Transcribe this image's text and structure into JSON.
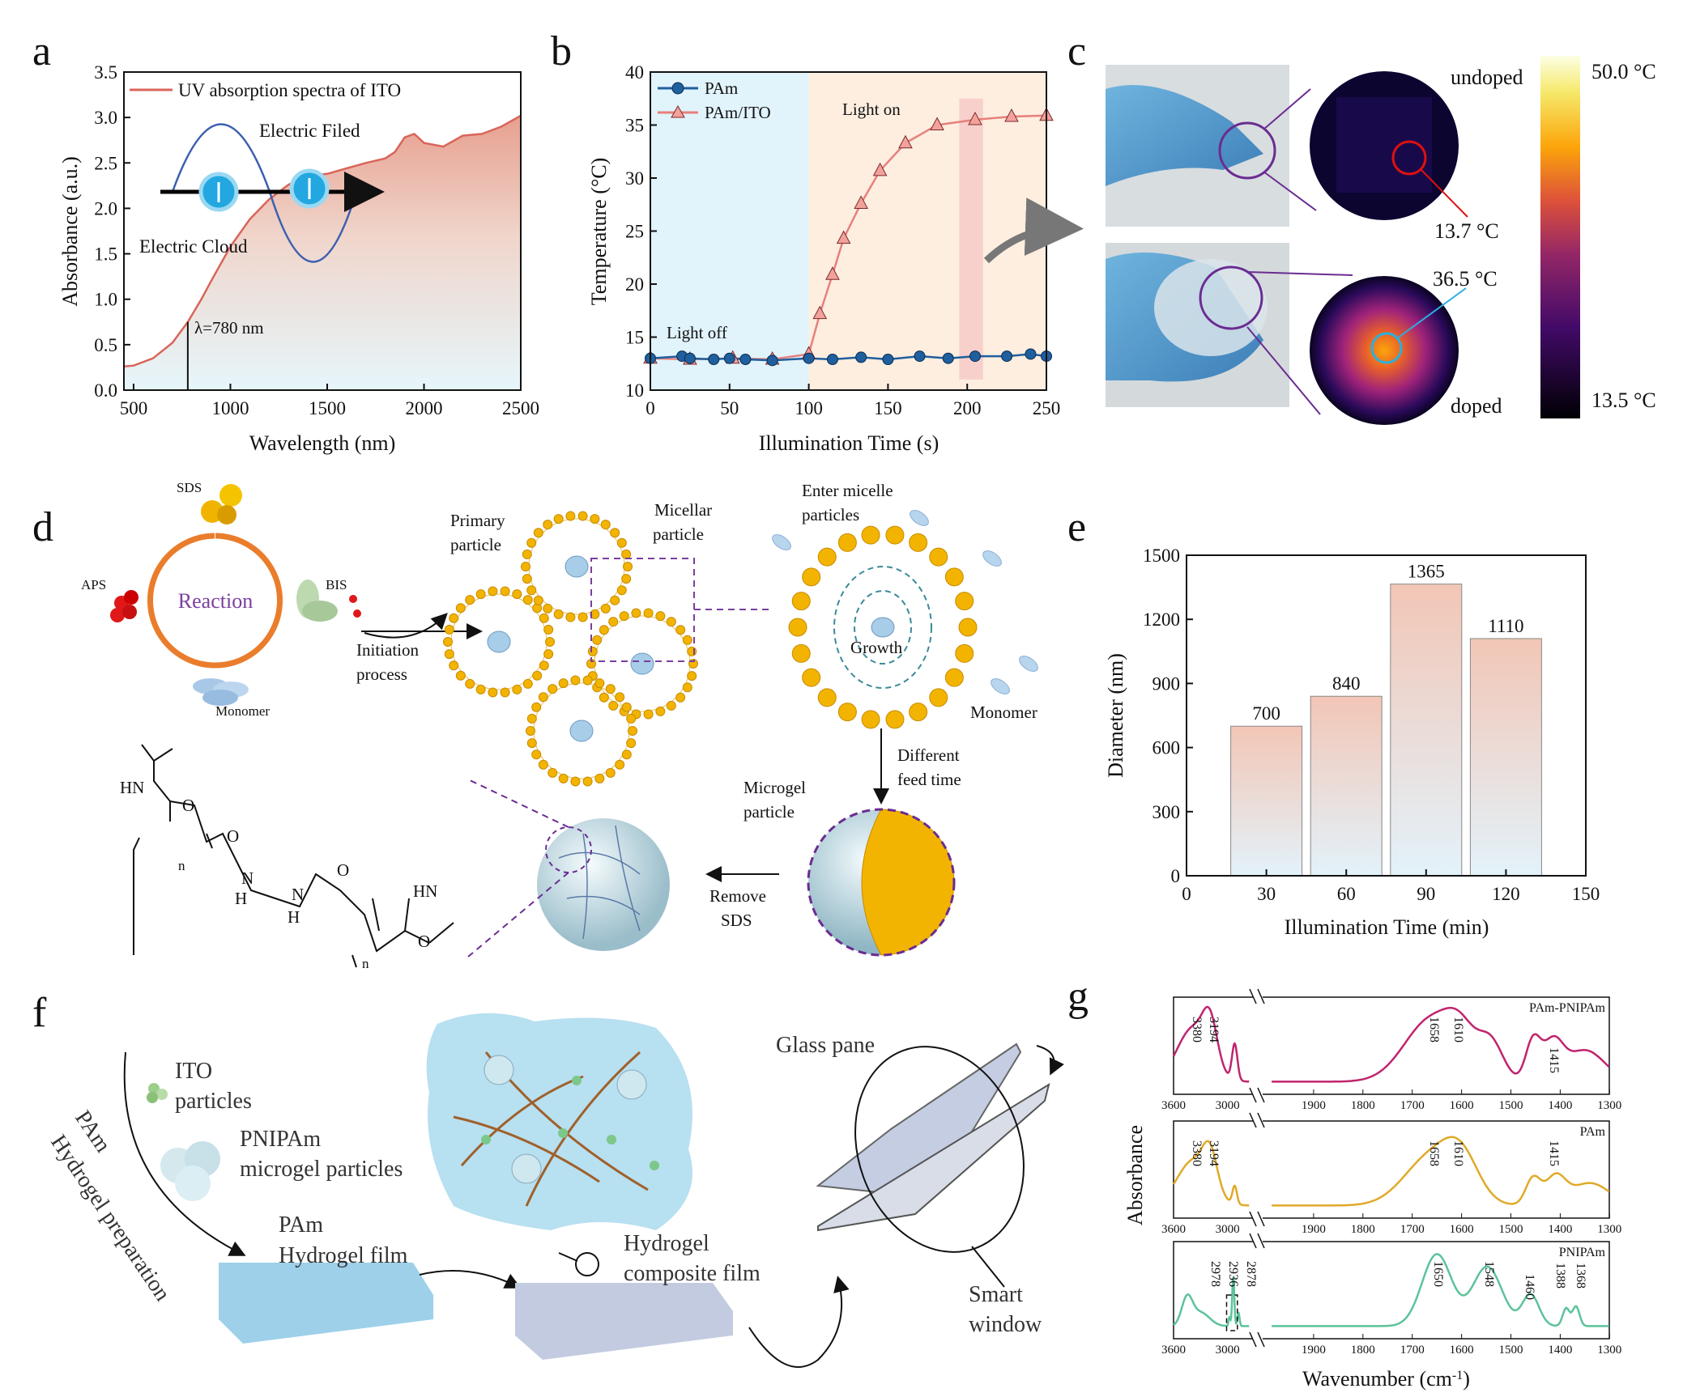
{
  "panels": {
    "a": "a",
    "b": "b",
    "c": "c",
    "d": "d",
    "e": "e",
    "f": "f",
    "g": "g"
  },
  "colors": {
    "ito_line": "#d9655a",
    "pam_line": "#1f5f9e",
    "pam_ito_line": "#e8807c",
    "bar_top": "#f2c6b6",
    "bar_bottom": "#e3f2fa",
    "pam_pnipam": "#c0246e",
    "pam": "#e0aa28",
    "pnipam": "#5cc39a",
    "reaction": "#ea7d2c",
    "reaction_text": "#7b3fa0"
  },
  "chart_data": [
    {
      "type": "line",
      "panel": "a",
      "xlabel": "Wavelength (nm)",
      "ylabel": "Absorbance (a.u.)",
      "xlim": [
        450,
        2500
      ],
      "ylim": [
        0,
        3.5
      ],
      "xticks": [
        "500",
        "1000",
        "1500",
        "2000",
        "2500"
      ],
      "yticks": [
        "0.0",
        "0.5",
        "1.0",
        "1.5",
        "2.0",
        "2.5",
        "3.0",
        "3.5"
      ],
      "legend": "UV absorption spectra of ITO",
      "legend_position": "top-left",
      "annotations": {
        "wavelength": "λ=780 nm",
        "electric_field": "Electric Filed",
        "electric_cloud": "Electric Cloud"
      },
      "marker_x": 780,
      "x": [
        450,
        500,
        600,
        700,
        780,
        850,
        900,
        1000,
        1100,
        1200,
        1300,
        1400,
        1500,
        1600,
        1700,
        1800,
        1850,
        1900,
        1950,
        2000,
        2100,
        2200,
        2300,
        2400,
        2500
      ],
      "y": [
        0.26,
        0.27,
        0.35,
        0.52,
        0.75,
        1.0,
        1.2,
        1.58,
        1.88,
        2.1,
        2.26,
        2.36,
        2.38,
        2.44,
        2.5,
        2.55,
        2.62,
        2.78,
        2.82,
        2.72,
        2.68,
        2.8,
        2.82,
        2.9,
        3.02
      ]
    },
    {
      "type": "line",
      "panel": "b",
      "xlabel": "Illumination Time (s)",
      "ylabel": "Temperature (°C)",
      "xlim": [
        0,
        250
      ],
      "ylim": [
        10,
        40
      ],
      "xticks": [
        "0",
        "50",
        "100",
        "150",
        "200",
        "250"
      ],
      "yticks": [
        "10",
        "15",
        "20",
        "25",
        "30",
        "35",
        "40"
      ],
      "regions": {
        "light_off": "Light off",
        "light_on": "Light on",
        "switch_x": 100,
        "highlight": [
          195,
          210
        ]
      },
      "legend_position": "top-left",
      "series": [
        {
          "name": "PAm",
          "x": [
            0,
            20,
            25,
            40,
            50,
            60,
            77,
            100,
            115,
            133,
            150,
            170,
            188,
            205,
            225,
            240,
            250
          ],
          "y": [
            13,
            13.2,
            13,
            12.9,
            13,
            12.9,
            12.8,
            13,
            12.9,
            13.1,
            12.9,
            13.2,
            13,
            13.2,
            13.2,
            13.4,
            13.2
          ]
        },
        {
          "name": "PAm/ITO",
          "x": [
            0,
            25,
            52,
            77,
            100,
            107,
            115,
            122,
            133,
            145,
            161,
            181,
            205,
            228,
            250
          ],
          "y": [
            13,
            12.9,
            13,
            12.9,
            13.4,
            17.2,
            20.9,
            24.3,
            27.6,
            30.7,
            33.3,
            35,
            35.5,
            35.8,
            35.9
          ]
        }
      ]
    },
    {
      "type": "bar",
      "panel": "e",
      "xlabel": "Illumination Time (min)",
      "ylabel": "Diameter (nm)",
      "xlim": [
        0,
        150
      ],
      "ylim": [
        0,
        1500
      ],
      "xticks": [
        "0",
        "30",
        "60",
        "90",
        "120",
        "150"
      ],
      "yticks": [
        "0",
        "300",
        "600",
        "900",
        "1200",
        "1500"
      ],
      "categories": [
        30,
        60,
        90,
        120
      ],
      "values": [
        700,
        840,
        1365,
        1110
      ],
      "labels": [
        "700",
        "840",
        "1365",
        "1110"
      ]
    },
    {
      "type": "line",
      "panel": "g",
      "xlabel": "Wavenumber (cm",
      "xlabel_sup": "-1",
      "xlabel_end": ")",
      "ylabel": "Absorbance",
      "xticks_left": [
        "3600",
        "3000"
      ],
      "xticks_right": [
        "1900",
        "1800",
        "1700",
        "1600",
        "1500",
        "1400",
        "1300"
      ],
      "series": [
        {
          "name": "PAm-PNIPAm",
          "peaks": [
            "3380",
            "3194",
            "1658",
            "1610",
            "1415"
          ]
        },
        {
          "name": "PAm",
          "peaks": [
            "3380",
            "3194",
            "1658",
            "1610",
            "1415"
          ]
        },
        {
          "name": "PNIPAm",
          "peaks": [
            "2978",
            "2936",
            "2878",
            "1650",
            "1548",
            "1460",
            "1388",
            "1368"
          ]
        }
      ]
    }
  ],
  "panel_c": {
    "undoped": "undoped",
    "doped": "doped",
    "undoped_temp": "13.7 °C",
    "doped_temp": "36.5 °C",
    "scale_max": "50.0 °C",
    "scale_min": "13.5 °C"
  },
  "panel_d": {
    "sds": "SDS",
    "aps": "APS",
    "bis": "BIS",
    "reaction": "Reaction",
    "monomer": "Monomer",
    "initiation": [
      "Initiation",
      "process"
    ],
    "primary": [
      "Primary",
      "particle"
    ],
    "micellar": [
      "Micellar",
      "particle"
    ],
    "enter": [
      "Enter micelle",
      "particles"
    ],
    "growth": "Growth",
    "monomer2": "Monomer",
    "feed": [
      "Different",
      "feed time"
    ],
    "microgel": [
      "Microgel",
      "particle"
    ],
    "remove": [
      "Remove",
      "SDS"
    ],
    "chem": {
      "hn": "HN",
      "o": "O",
      "n": "N",
      "h": "H",
      "sub_n": "n"
    }
  },
  "panel_f": {
    "ito": [
      "ITO",
      "particles"
    ],
    "pnipam": [
      "PNIPAm",
      "microgel particles"
    ],
    "pam_film": [
      "PAm",
      "Hydrogel film"
    ],
    "composite": [
      "Hydrogel",
      "composite film"
    ],
    "glass": "Glass pane",
    "smart": [
      "Smart",
      "window"
    ],
    "prep": [
      "PAm",
      "Hydrogel preparation"
    ]
  }
}
